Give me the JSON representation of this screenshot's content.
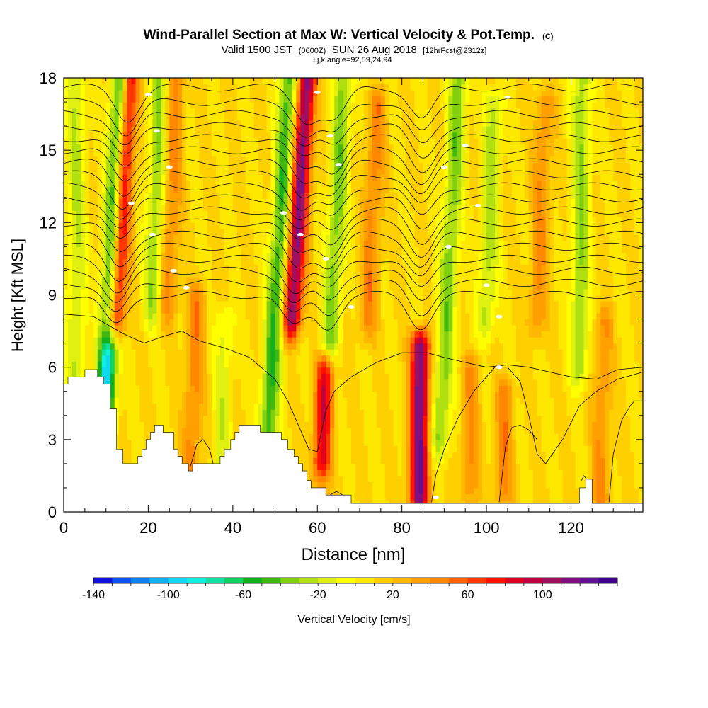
{
  "chart_data": {
    "type": "heatmap",
    "title": "Wind-Parallel Section at Max W: Vertical Velocity & Pot.Temp.",
    "title_mark": "(C)",
    "subtitle_parts": [
      "Valid 1500 JST",
      "(0600Z)",
      "SUN 26 Aug 2018",
      "[12hrFcst@2312z]"
    ],
    "subtitle2": "i,j,k,angle=92,59,24,94",
    "xlabel": "Distance [nm]",
    "ylabel": "Height [Kft MSL]",
    "xlim": [
      0,
      137
    ],
    "ylim": [
      0,
      18
    ],
    "x_ticks": [
      "0",
      "20",
      "40",
      "60",
      "80",
      "100",
      "120"
    ],
    "x_tick_values": [
      0,
      20,
      40,
      60,
      80,
      100,
      120
    ],
    "y_ticks": [
      "0",
      "3",
      "6",
      "9",
      "12",
      "15",
      "18"
    ],
    "y_tick_values": [
      0,
      3,
      6,
      9,
      12,
      15,
      18
    ],
    "colorbar": {
      "label": "Vertical Velocity [cm/s]",
      "min": -140,
      "max": 140,
      "step": 10,
      "tick_labels": [
        "-140",
        "-100",
        "-60",
        "-20",
        "20",
        "60",
        "100"
      ],
      "tick_values": [
        -140,
        -100,
        -60,
        -20,
        20,
        60,
        100
      ],
      "colors": [
        "#1010e0",
        "#1050f0",
        "#1080f0",
        "#10b0f0",
        "#10d8f0",
        "#10f0e0",
        "#10e0a0",
        "#10d060",
        "#10b020",
        "#40b810",
        "#80d010",
        "#b0e010",
        "#e0f010",
        "#ffff00",
        "#ffe800",
        "#ffd000",
        "#ffb800",
        "#ffa000",
        "#ff8800",
        "#ff6000",
        "#ff3800",
        "#ff1000",
        "#e00020",
        "#c00040",
        "#a01060",
        "#801080",
        "#601090",
        "#400090"
      ]
    },
    "background_value": 10,
    "updrafts": [
      {
        "x": 12,
        "base": 8.0,
        "top": 18,
        "tilt": 0.32,
        "peak": 120
      },
      {
        "x": 24.5,
        "base": 8.5,
        "top": 18,
        "tilt": 0.22,
        "peak": 35
      },
      {
        "x": 30,
        "base": 1.5,
        "top": 9,
        "tilt": 0.2,
        "peak": 35
      },
      {
        "x": 54,
        "base": 8.0,
        "top": 18,
        "tilt": 0.35,
        "peak": 105
      },
      {
        "x": 61,
        "base": 2.0,
        "top": 6.0,
        "tilt": 0.2,
        "peak": 75
      },
      {
        "x": 84,
        "base": 0.5,
        "top": 7.0,
        "tilt": 0.05,
        "peak": 110
      },
      {
        "x": 72,
        "base": 8.0,
        "top": 17,
        "tilt": 0.25,
        "peak": 35
      },
      {
        "x": 96,
        "base": 1.0,
        "top": 6.0,
        "tilt": 0.1,
        "peak": 30
      },
      {
        "x": 104,
        "base": 1.0,
        "top": 5.0,
        "tilt": 0.1,
        "peak": 35
      },
      {
        "x": 112,
        "base": 8.0,
        "top": 17,
        "tilt": 0.2,
        "peak": 30
      },
      {
        "x": 127,
        "base": 0.5,
        "top": 8.0,
        "tilt": 0.1,
        "peak": 30
      }
    ],
    "downdrafts": [
      {
        "x": 9.5,
        "base": 3.5,
        "top": 18,
        "tilt": 0.3,
        "peak": -110
      },
      {
        "x": 21,
        "base": 8.5,
        "top": 18,
        "tilt": 0.2,
        "peak": -40
      },
      {
        "x": 48,
        "base": 2.5,
        "top": 18,
        "tilt": 0.35,
        "peak": -60
      },
      {
        "x": 63,
        "base": 7.0,
        "top": 18,
        "tilt": 0.3,
        "peak": -45
      },
      {
        "x": 89,
        "base": 3.0,
        "top": 18,
        "tilt": 0.3,
        "peak": -45
      },
      {
        "x": 100,
        "base": 8.0,
        "top": 17,
        "tilt": 0.2,
        "peak": -35
      },
      {
        "x": 122,
        "base": 6.0,
        "top": 18,
        "tilt": 0.05,
        "peak": -40
      },
      {
        "x": 37,
        "base": 1.5,
        "top": 8.0,
        "tilt": 0.2,
        "peak": -25
      },
      {
        "x": 3,
        "base": 5.5,
        "top": 18,
        "tilt": 0.0,
        "peak": -30
      }
    ],
    "terrain": {
      "x": [
        0,
        1,
        1,
        2.5,
        2.5,
        5,
        5,
        8,
        8,
        9.5,
        9.5,
        11,
        11,
        12.5,
        12.5,
        14,
        14,
        17.5,
        17.5,
        18.5,
        18.5,
        19.5,
        19.5,
        20.5,
        20.5,
        21.5,
        21.5,
        22.5,
        22.5,
        23.5,
        23.5,
        26,
        26,
        27,
        27,
        28,
        28,
        29.5,
        29.5,
        30.5,
        30.5,
        37,
        37,
        38,
        38,
        39.5,
        39.5,
        40.5,
        40.5,
        41.5,
        41.5,
        42.5,
        42.5,
        43.5,
        43.5,
        46.5,
        46.5,
        47.5,
        47.5,
        51.5,
        51.5,
        53,
        53,
        54.5,
        54.5,
        55.5,
        55.5,
        56.5,
        56.5,
        57.5,
        57.5,
        58.5,
        58.5,
        62,
        62,
        68,
        68,
        122,
        122,
        123.5,
        123.5,
        125,
        125,
        137
      ],
      "y": [
        5.3,
        5.3,
        5.6,
        5.6,
        5.6,
        5.6,
        5.9,
        5.9,
        5.6,
        5.6,
        5.3,
        5.3,
        4.3,
        4.3,
        2.6,
        2.6,
        2.0,
        2.0,
        2.3,
        2.3,
        2.6,
        2.6,
        3.0,
        3.0,
        3.3,
        3.3,
        3.6,
        3.6,
        3.6,
        3.6,
        3.3,
        3.3,
        2.6,
        2.6,
        2.3,
        2.3,
        2.0,
        2.0,
        1.7,
        1.7,
        2.0,
        2.0,
        2.3,
        2.3,
        2.6,
        2.6,
        3.0,
        3.0,
        3.3,
        3.3,
        3.6,
        3.6,
        3.6,
        3.6,
        3.6,
        3.6,
        3.3,
        3.3,
        3.3,
        3.3,
        3.0,
        3.0,
        2.6,
        2.6,
        2.3,
        2.3,
        2.0,
        2.0,
        1.7,
        1.7,
        1.3,
        1.3,
        1.0,
        1.0,
        0.7,
        0.7,
        0.35,
        0.35,
        1.0,
        1.0,
        1.35,
        1.35,
        0.35,
        0.35
      ]
    },
    "isentropes": {
      "levels": [
        {
          "label": "",
          "base": 17.6
        },
        {
          "label": "",
          "base": 17.0
        },
        {
          "label": "",
          "base": 16.5
        },
        {
          "label": "",
          "base": 16.0
        },
        {
          "label": "",
          "base": 15.5
        },
        {
          "label": "",
          "base": 15.0
        },
        {
          "label": "",
          "base": 14.5
        },
        {
          "label": "",
          "base": 14.0
        },
        {
          "label": "",
          "base": 13.5
        },
        {
          "label": "",
          "base": 13.0
        },
        {
          "label": "",
          "base": 12.5
        },
        {
          "label": "",
          "base": 12.0
        },
        {
          "label": "",
          "base": 11.5
        },
        {
          "label": "",
          "base": 11.0
        },
        {
          "label": "",
          "base": 10.5
        },
        {
          "label": "",
          "base": 10.0
        },
        {
          "label": "",
          "base": 9.5
        },
        {
          "label": "",
          "base": 9.0
        }
      ],
      "dip_amp": 1.3,
      "low_contours": [
        {
          "x": [
            0,
            7,
            10,
            14,
            19,
            24,
            28,
            32,
            38,
            44,
            50,
            53,
            55,
            57,
            58,
            60,
            62,
            64,
            68,
            74,
            80,
            86,
            90,
            95,
            100,
            105,
            110,
            115,
            120,
            126,
            131,
            137
          ],
          "y": [
            8.2,
            8.1,
            7.8,
            7.4,
            7.0,
            7.3,
            7.5,
            7.1,
            6.8,
            6.4,
            5.5,
            4.6,
            3.8,
            3.0,
            2.6,
            2.5,
            4.2,
            5.0,
            5.6,
            6.2,
            6.6,
            6.6,
            6.4,
            6.2,
            6.0,
            6.1,
            6.0,
            5.8,
            5.6,
            5.5,
            5.9,
            6.0
          ]
        },
        {
          "x": [
            87,
            88,
            90,
            93,
            97,
            102,
            105,
            108,
            110,
            111,
            112,
            114,
            118,
            122,
            126,
            131,
            137
          ],
          "y": [
            0.4,
            1.5,
            2.6,
            3.8,
            5.0,
            6.0,
            6.0,
            5.4,
            4.0,
            3.2,
            2.4,
            2.0,
            3.0,
            4.4,
            5.0,
            5.5,
            5.8
          ]
        },
        {
          "x": [
            103,
            104.5,
            106,
            108,
            110,
            112
          ],
          "y": [
            0.4,
            2.7,
            3.5,
            3.6,
            3.4,
            3.0
          ]
        },
        {
          "x": [
            30,
            31.5,
            33,
            34.5,
            35.5
          ],
          "y": [
            1.9,
            2.8,
            3.0,
            2.6,
            1.9
          ]
        },
        {
          "x": [
            63,
            64.5,
            66
          ],
          "y": [
            0.7,
            0.85,
            0.7
          ]
        },
        {
          "x": [
            129,
            130,
            132,
            134,
            135,
            137
          ],
          "y": [
            0.4,
            2.4,
            3.8,
            4.4,
            4.6,
            4.6
          ]
        },
        {
          "x": [
            122.5,
            123,
            124
          ],
          "y": [
            1.3,
            1.5,
            1.3
          ]
        }
      ],
      "label_positions": [
        {
          "x": 20,
          "y": 17.3
        },
        {
          "x": 60,
          "y": 17.4
        },
        {
          "x": 105,
          "y": 17.2
        },
        {
          "x": 22,
          "y": 15.8
        },
        {
          "x": 63,
          "y": 15.6
        },
        {
          "x": 95,
          "y": 15.2
        },
        {
          "x": 25,
          "y": 14.3
        },
        {
          "x": 65,
          "y": 14.4
        },
        {
          "x": 90,
          "y": 14.3
        },
        {
          "x": 16,
          "y": 12.8
        },
        {
          "x": 52,
          "y": 12.4
        },
        {
          "x": 98,
          "y": 12.7
        },
        {
          "x": 21,
          "y": 11.5
        },
        {
          "x": 56,
          "y": 11.5
        },
        {
          "x": 91,
          "y": 11.0
        },
        {
          "x": 26,
          "y": 10.0
        },
        {
          "x": 62,
          "y": 10.5
        },
        {
          "x": 100,
          "y": 9.4
        },
        {
          "x": 29,
          "y": 9.3
        },
        {
          "x": 68,
          "y": 8.5
        },
        {
          "x": 103,
          "y": 8.1
        },
        {
          "x": 103,
          "y": 6.0
        },
        {
          "x": 88,
          "y": 0.6
        }
      ]
    }
  }
}
